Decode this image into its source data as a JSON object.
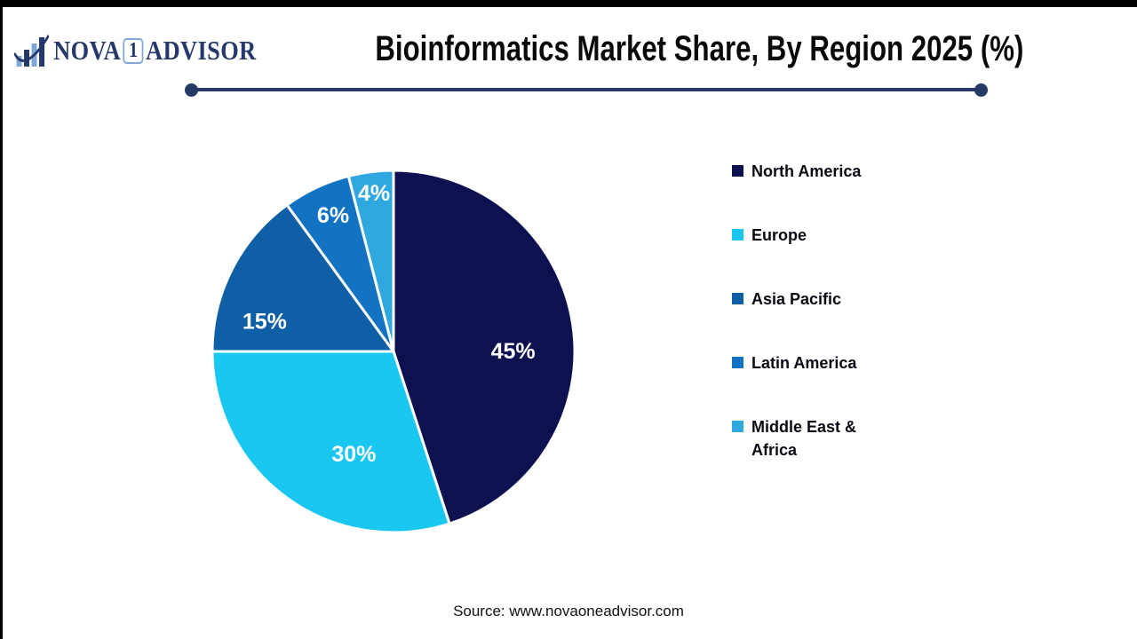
{
  "logo": {
    "brand_prefix": "NOVA",
    "brand_number": "1",
    "brand_suffix": "ADVISOR"
  },
  "header": {
    "title": "Bioinformatics Market Share, By Region 2025 (%)"
  },
  "chart_data": {
    "type": "pie",
    "title": "Bioinformatics Market Share, By Region 2025 (%)",
    "categories": [
      "North America",
      "Europe",
      "Asia Pacific",
      "Latin America",
      "Middle East & Africa"
    ],
    "values": [
      45,
      30,
      15,
      6,
      4
    ],
    "labels": [
      "45%",
      "30%",
      "15%",
      "6%",
      "4%"
    ],
    "unit": "%",
    "colors": [
      "#0D1150",
      "#19C7F0",
      "#0E5FA5",
      "#1173C1",
      "#2FA8E0"
    ],
    "slice_border_color": "#FFFFFF",
    "start_angle_deg": 0,
    "direction": "clockwise",
    "legend_position": "right"
  },
  "footer": {
    "source": "Source: www.novaoneadvisor.com"
  },
  "theme": {
    "background": "#FFFFFF",
    "divider_color": "#263A66",
    "text_color": "#0A0A0A",
    "logo_navy": "#24386B",
    "logo_light_blue": "#7FA8D9"
  }
}
